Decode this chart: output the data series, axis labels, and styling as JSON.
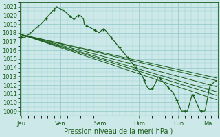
{
  "title": "",
  "xlabel": "Pression niveau de la mer( hPa )",
  "ylabel": "",
  "bg_color": "#cce8e8",
  "grid_color": "#99cccc",
  "line_color": "#1a5c1a",
  "marker_color": "#1a5c1a",
  "ylim": [
    1008.5,
    1021.5
  ],
  "yticks": [
    1009,
    1010,
    1011,
    1012,
    1013,
    1014,
    1015,
    1016,
    1017,
    1018,
    1019,
    1020,
    1021
  ],
  "day_labels": [
    "Jeu",
    "Ven",
    "Sam",
    "Dim",
    "Lun",
    "Ma"
  ],
  "day_positions": [
    0,
    48,
    96,
    144,
    192,
    228
  ],
  "xlim": [
    -2,
    240
  ],
  "n_points": 240,
  "smooth_lines_start": [
    1017.8,
    1017.8,
    1017.8,
    1017.8,
    1017.8,
    1017.8
  ],
  "smooth_lines_end": [
    1012.5,
    1011.8,
    1011.2,
    1010.8,
    1010.3,
    1012.8
  ]
}
